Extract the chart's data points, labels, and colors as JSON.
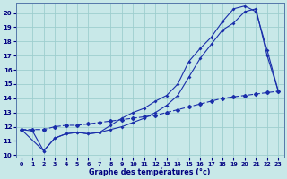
{
  "xlabel": "Graphe des températures (°c)",
  "xlim": [
    0,
    23
  ],
  "ylim": [
    10,
    20
  ],
  "xticks": [
    0,
    1,
    2,
    3,
    4,
    5,
    6,
    7,
    8,
    9,
    10,
    11,
    12,
    13,
    14,
    15,
    16,
    17,
    18,
    19,
    20,
    21,
    22,
    23
  ],
  "yticks": [
    10,
    11,
    12,
    13,
    14,
    15,
    16,
    17,
    18,
    19,
    20
  ],
  "bg_color": "#c8e8e8",
  "grid_color": "#9ecece",
  "line_color": "#1a2eaa",
  "line1_x": [
    0,
    1,
    2,
    3,
    4,
    5,
    6,
    7,
    8,
    9,
    10,
    11,
    12,
    13,
    14,
    15,
    16,
    17,
    18,
    19,
    20,
    21,
    22,
    23
  ],
  "line1_y": [
    11.8,
    11.7,
    10.3,
    11.2,
    11.5,
    11.6,
    11.5,
    11.6,
    12.1,
    12.6,
    13.0,
    13.3,
    13.8,
    14.2,
    15.0,
    16.6,
    17.5,
    18.3,
    19.4,
    20.3,
    20.5,
    20.1,
    17.4,
    14.5
  ],
  "line2_x": [
    0,
    2,
    3,
    4,
    5,
    6,
    7,
    8,
    9,
    10,
    11,
    12,
    13,
    14,
    15,
    16,
    17,
    18,
    19,
    20,
    21,
    22,
    23
  ],
  "line2_y": [
    11.8,
    10.3,
    11.2,
    11.5,
    11.6,
    11.5,
    11.6,
    11.8,
    12.0,
    12.3,
    12.6,
    13.0,
    13.5,
    14.2,
    15.5,
    16.8,
    17.8,
    18.8,
    19.3,
    20.1,
    20.3,
    17.0,
    14.5
  ],
  "line3_x": [
    0,
    1,
    2,
    3,
    4,
    5,
    6,
    7,
    8,
    9,
    10,
    11,
    12,
    13,
    14,
    15,
    16,
    17,
    18,
    19,
    20,
    21,
    22,
    23
  ],
  "line3_y": [
    11.8,
    11.8,
    11.8,
    12.0,
    12.1,
    12.1,
    12.2,
    12.3,
    12.4,
    12.5,
    12.6,
    12.7,
    12.8,
    13.0,
    13.2,
    13.4,
    13.6,
    13.8,
    14.0,
    14.1,
    14.2,
    14.3,
    14.4,
    14.5
  ]
}
